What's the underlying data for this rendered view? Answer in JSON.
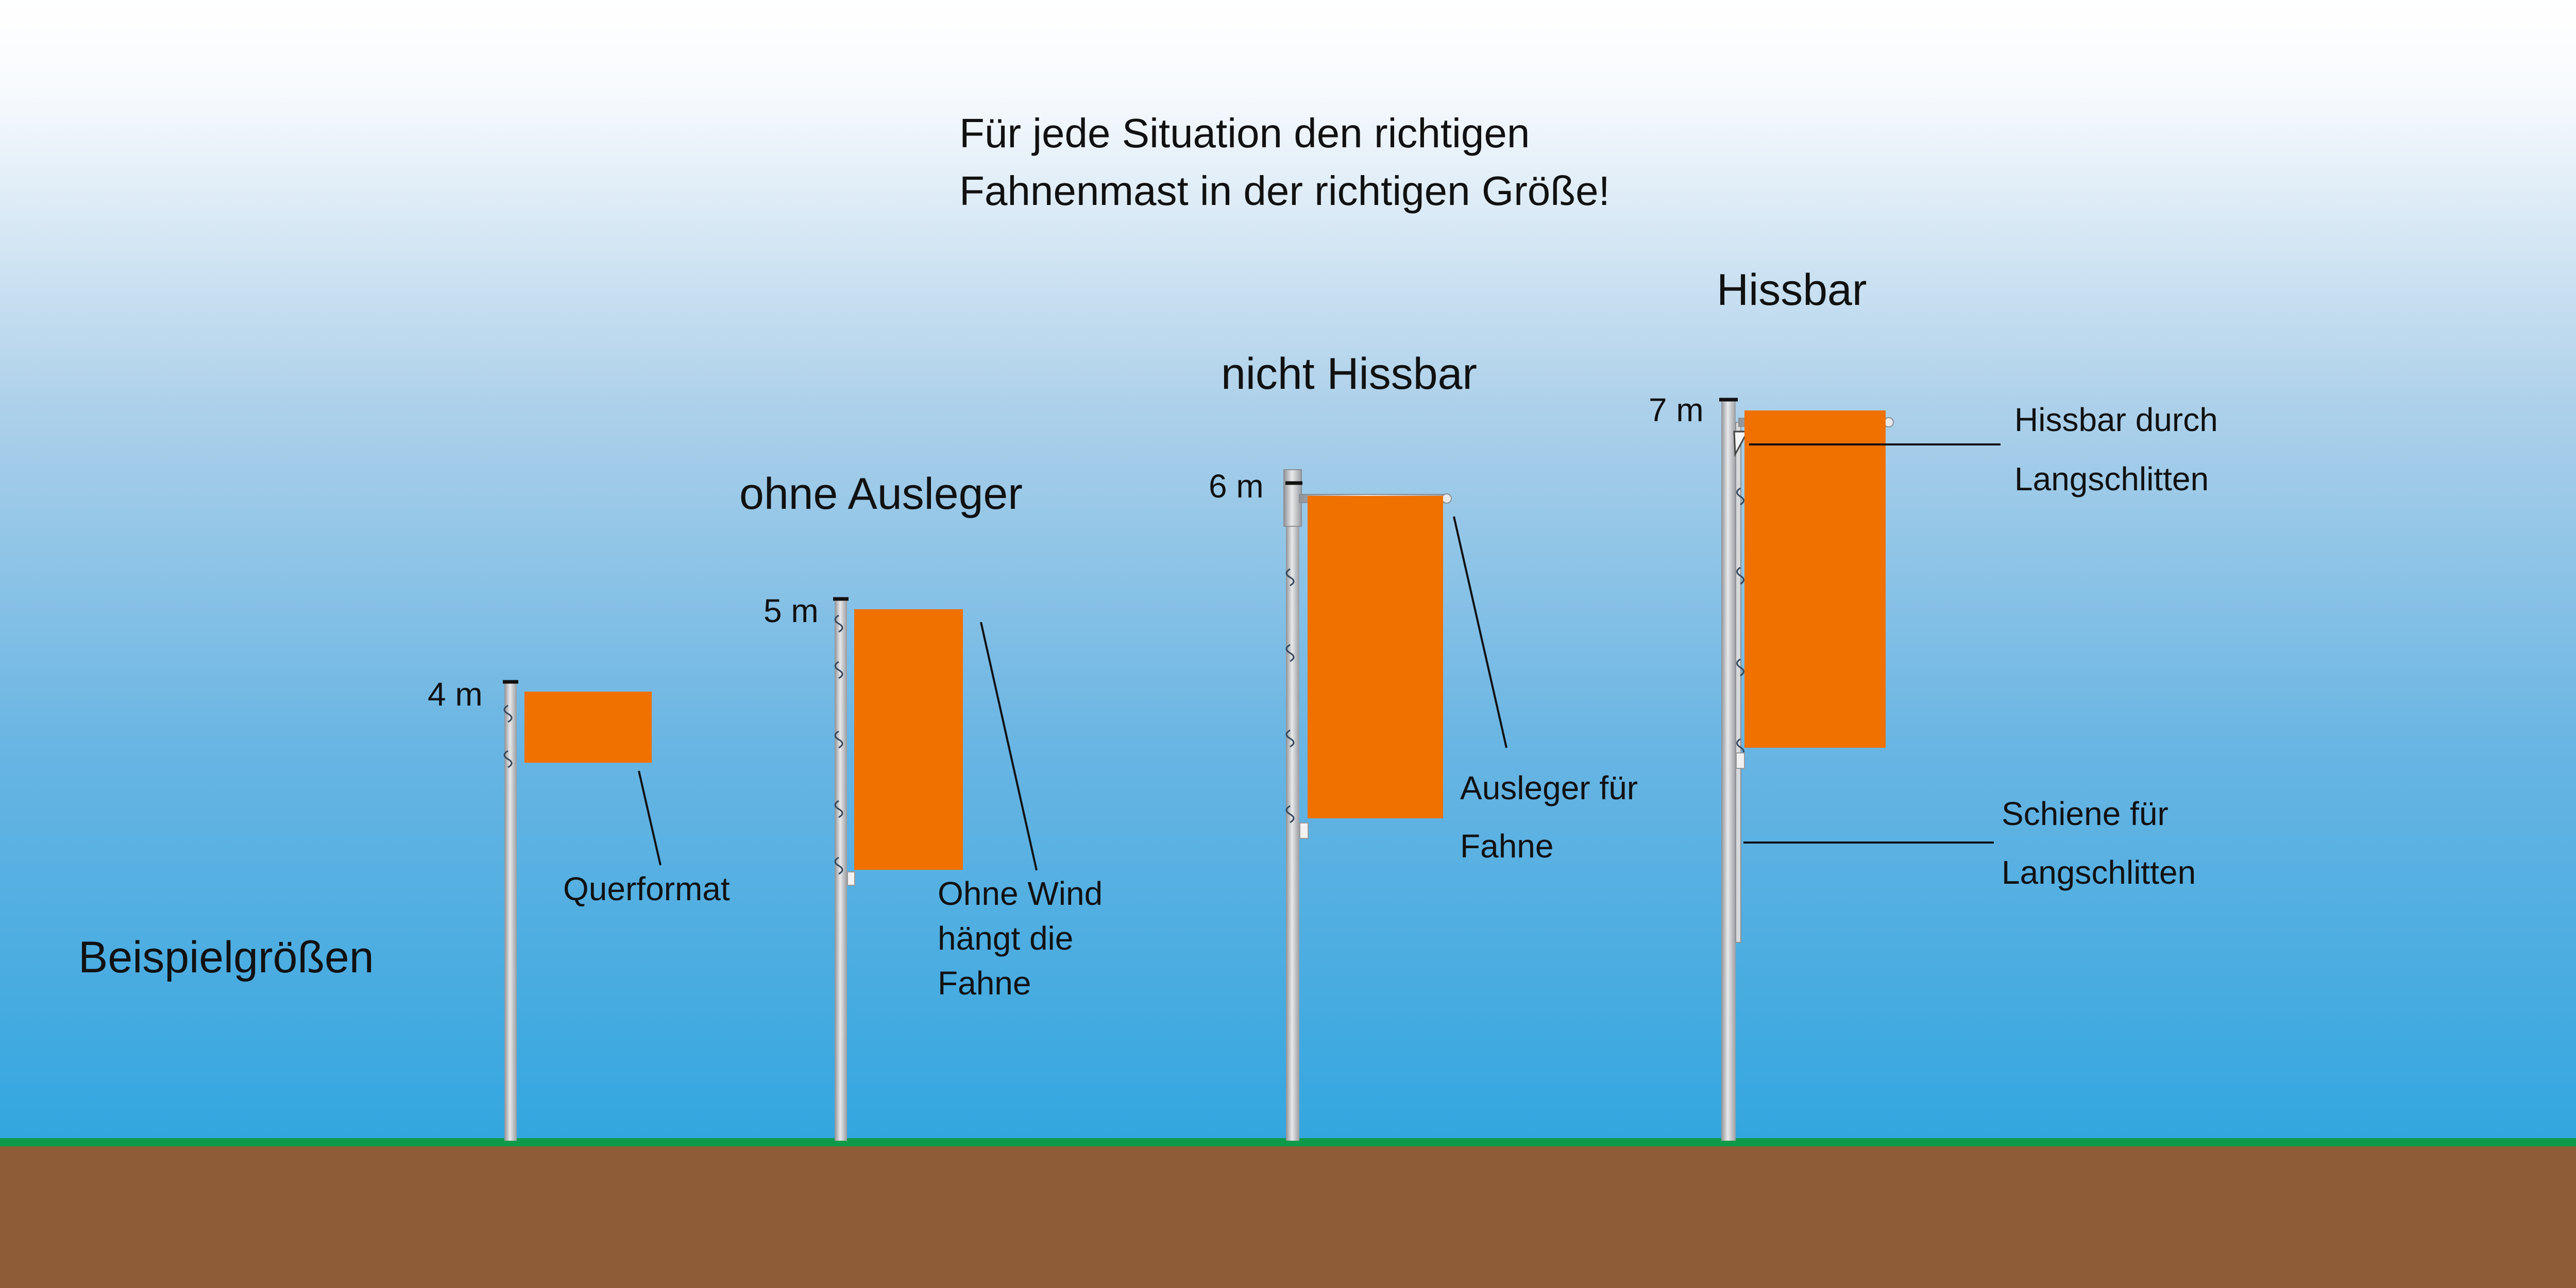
{
  "title_lines": [
    "Für jede Situation den richtigen",
    "Fahnenmast in der richtigen Größe!"
  ],
  "side_label": "Beispielgrößen",
  "headings": {
    "ohne_ausleger": "ohne Ausleger",
    "nicht_hissbar": "nicht Hissbar",
    "hissbar": "Hissbar"
  },
  "poles": [
    {
      "height": "4 m",
      "flag_format": "landscape",
      "annotation": [
        "Querformat"
      ]
    },
    {
      "height": "5 m",
      "flag_format": "portrait",
      "annotation": [
        "Ohne Wind",
        "hängt die",
        "Fahne"
      ]
    },
    {
      "height": "6 m",
      "flag_format": "portrait",
      "annotation": [
        "Ausleger für",
        "Fahne"
      ]
    },
    {
      "height": "7 m",
      "flag_format": "portrait",
      "annotation": [
        "Hissbar durch",
        "Langschlitten"
      ],
      "rail_annotation": [
        "Schiene für",
        "Langschlitten"
      ]
    }
  ],
  "colors": {
    "sky_top": "#ffffff",
    "sky_bottom": "#32a6df",
    "flag": "#f07000",
    "grass": "#0f9a4a",
    "ground": "#8e5c36",
    "pole": "#c4c6c9"
  }
}
